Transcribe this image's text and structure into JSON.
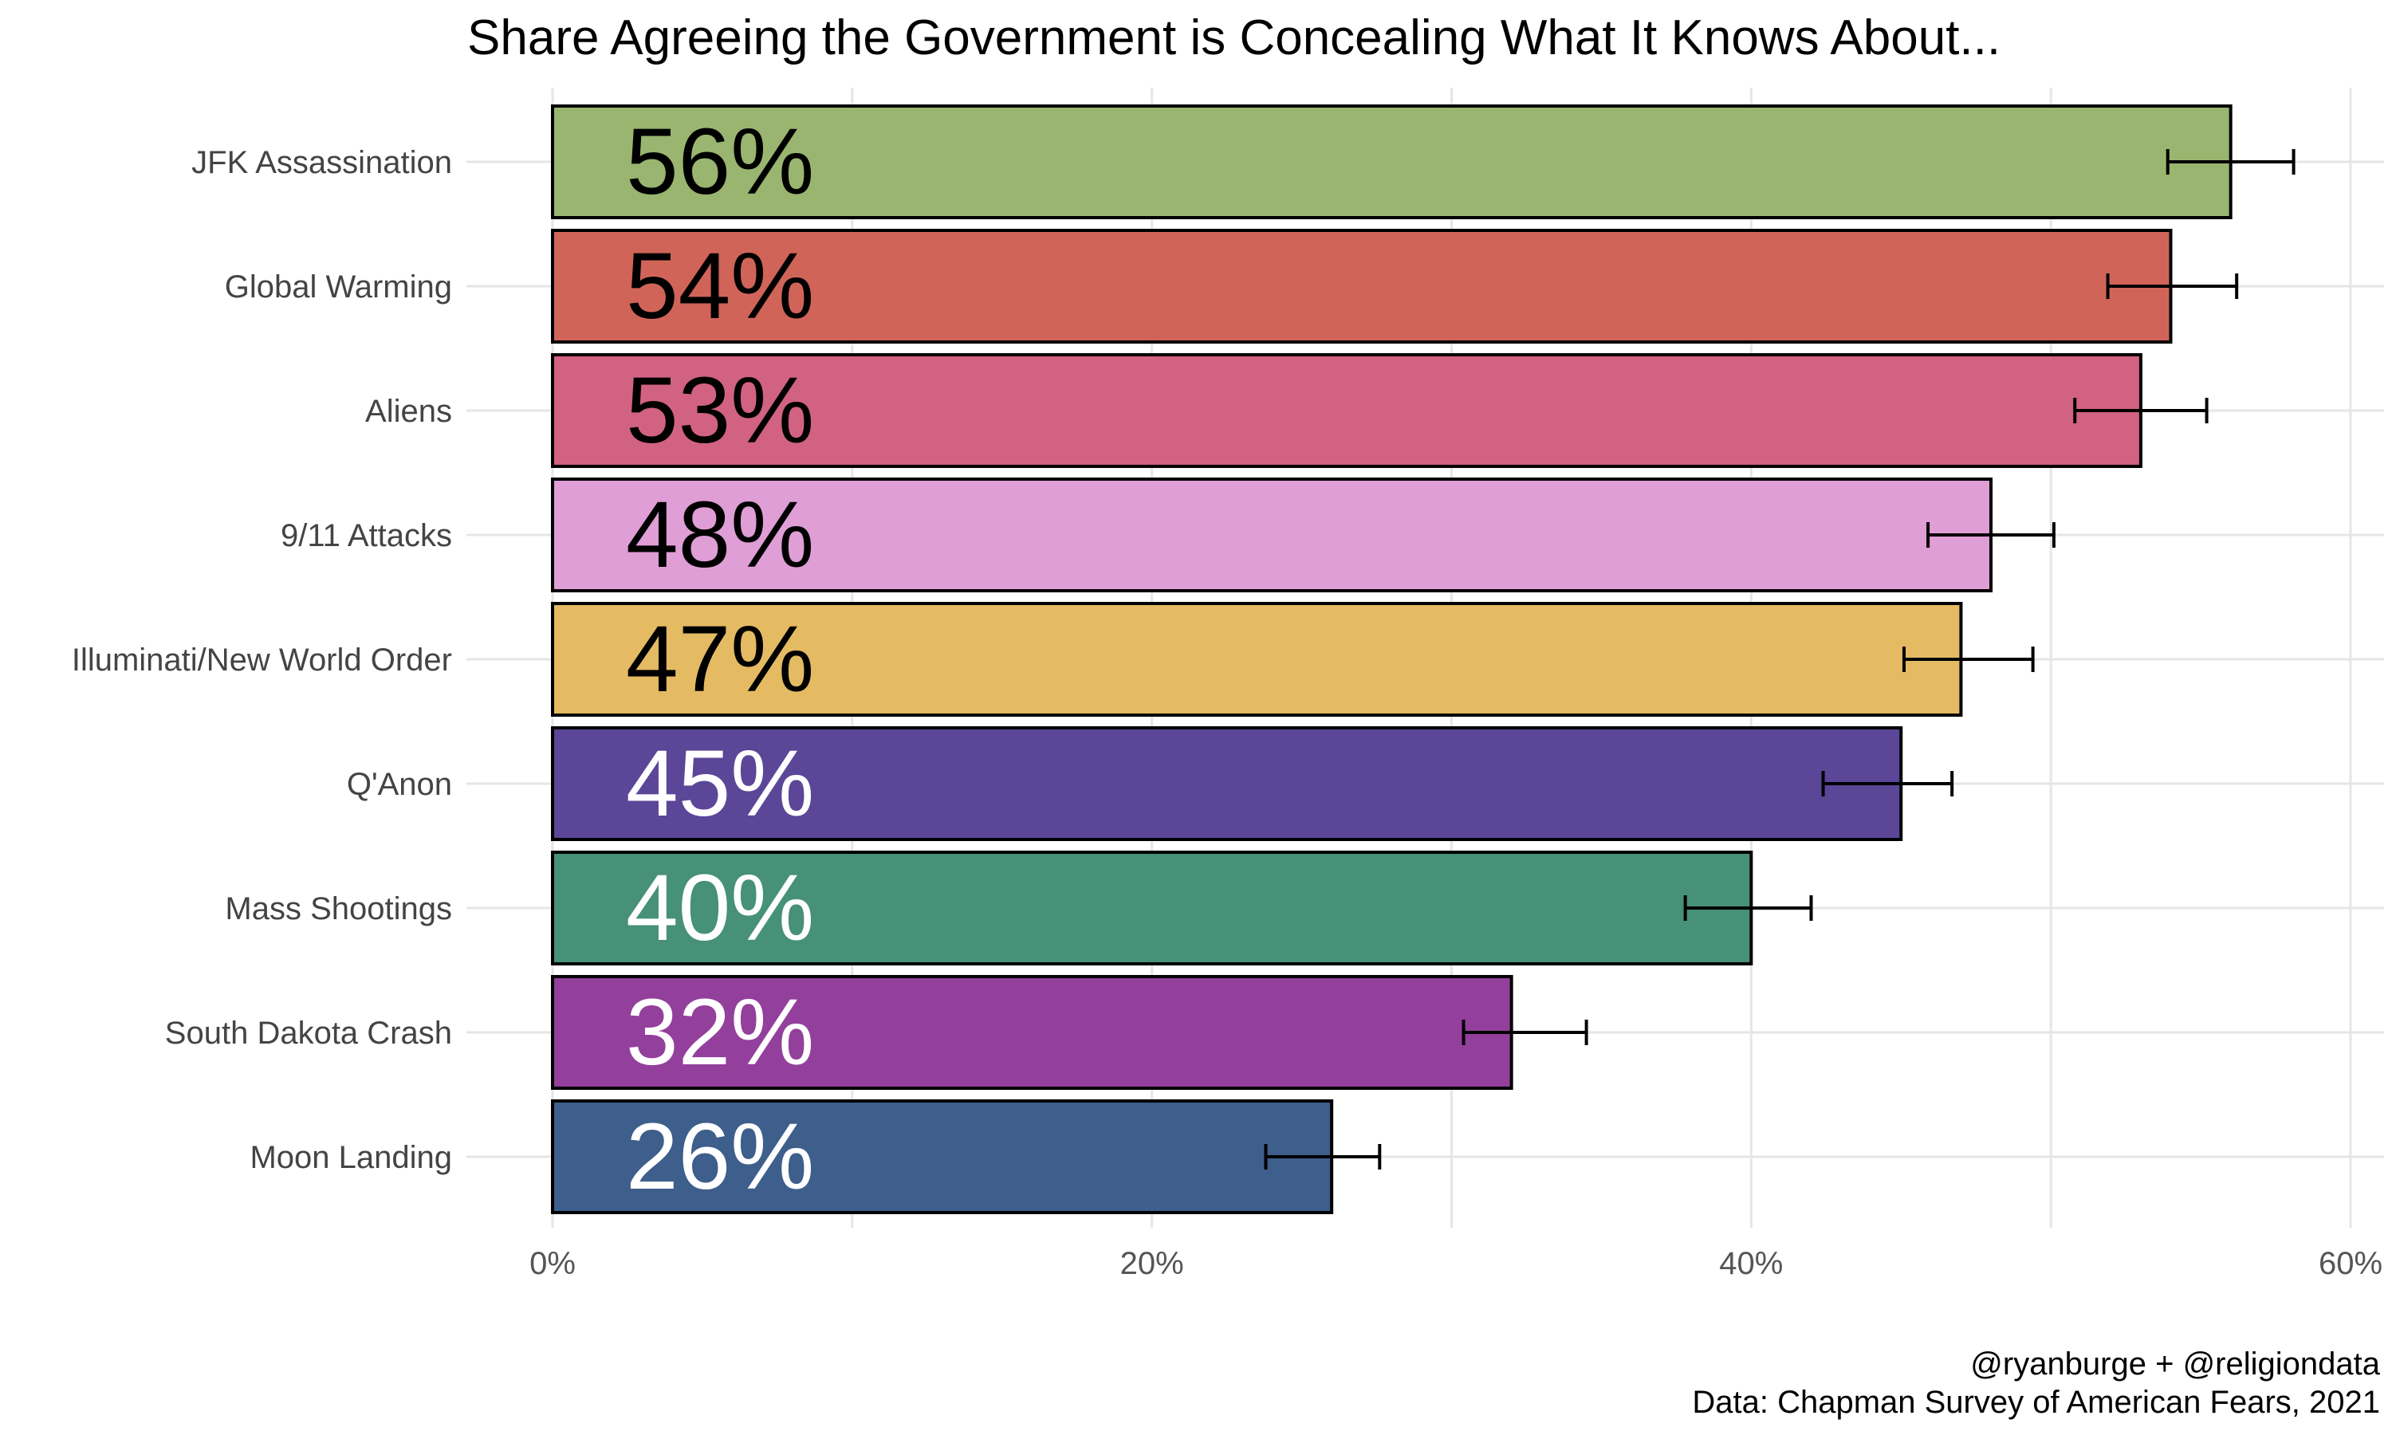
{
  "chart_data": {
    "type": "bar",
    "orientation": "horizontal",
    "title": "Share Agreeing the Government is Concealing What It Knows About...",
    "xlabel": "",
    "ylabel": "",
    "xlim": [
      0,
      60
    ],
    "x_ticks": [
      0,
      20,
      40,
      60
    ],
    "x_tick_labels": [
      "0%",
      "20%",
      "40%",
      "60%"
    ],
    "grid": true,
    "categories": [
      "JFK Assassination",
      "Global Warming",
      "Aliens",
      "9/11 Attacks",
      "Illuminati/New World Order",
      "Q'Anon",
      "Mass Shootings",
      "South Dakota Crash",
      "Moon Landing"
    ],
    "values": [
      56,
      54,
      53,
      48,
      47,
      45,
      40,
      32,
      26
    ],
    "value_labels": [
      "56%",
      "54%",
      "53%",
      "48%",
      "47%",
      "45%",
      "40%",
      "32%",
      "26%"
    ],
    "error_low": [
      53.9,
      51.9,
      50.8,
      45.9,
      45.1,
      42.4,
      37.8,
      30.4,
      23.8
    ],
    "error_high": [
      58.1,
      56.2,
      55.2,
      50.1,
      49.4,
      46.7,
      42.0,
      34.5,
      27.6
    ],
    "colors": [
      "#9ab56f",
      "#d16459",
      "#d26281",
      "#df9ed5",
      "#e4bb63",
      "#5b4698",
      "#469178",
      "#933f9c",
      "#3e5e8c"
    ],
    "label_colors": [
      "#000000",
      "#000000",
      "#000000",
      "#000000",
      "#000000",
      "#ffffff",
      "#ffffff",
      "#ffffff",
      "#ffffff"
    ]
  },
  "caption": {
    "line1": "@ryanburge + @religiondata",
    "line2": "Data: Chapman Survey of American Fears, 2021"
  }
}
